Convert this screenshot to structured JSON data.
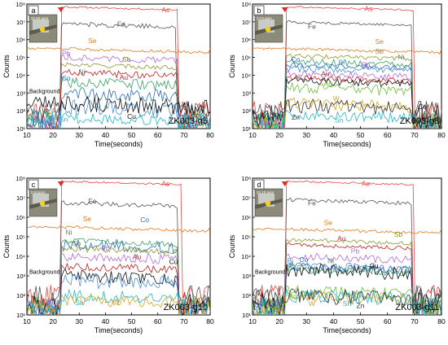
{
  "chart_data": [
    {
      "type": "line",
      "panel_label": "a",
      "sample": "ZK003-g5",
      "inset_value": "42.60 ppm",
      "xlabel": "Time(seconds)",
      "ylabel": "Counts",
      "xlim": [
        10,
        80
      ],
      "xticks": [
        10,
        20,
        30,
        40,
        50,
        60,
        70,
        80
      ],
      "ylim_exp": [
        1,
        8
      ],
      "yticks_exp": [
        1,
        2,
        3,
        4,
        5,
        6,
        7,
        8
      ],
      "ytick_labels": [
        "10¹",
        "10²",
        "10³",
        "10⁴",
        "10⁵",
        "10⁶",
        "10⁷",
        "10⁸"
      ],
      "signal_window": [
        23,
        70
      ],
      "background_label": "Background",
      "series": [
        {
          "name": "As",
          "color": "#e8483f",
          "bg": 2.0,
          "level": 7.85,
          "noise": 0.05,
          "end": 68
        },
        {
          "name": "Fe",
          "color": "#555555",
          "bg": 2.0,
          "level": 6.9,
          "noise": 0.15,
          "end": 67
        },
        {
          "name": "Se",
          "color": "#e07a1f",
          "bg": 5.5,
          "level": 5.5,
          "noise": 0.08,
          "end": 80
        },
        {
          "name": "Pb",
          "color": "#b36ad9",
          "bg": 1.4,
          "level": 5.0,
          "noise": 0.18,
          "end": 68
        },
        {
          "name": "Sb",
          "color": "#8a9a2a",
          "bg": 1.5,
          "level": 4.6,
          "noise": 0.12,
          "end": 68
        },
        {
          "name": "Ni",
          "color": "#3aa06a",
          "bg": 1.6,
          "level": 3.6,
          "noise": 0.3,
          "end": 68
        },
        {
          "name": "Au",
          "color": "#c41e1e",
          "bg": 1.3,
          "level": 4.15,
          "noise": 0.2,
          "end": 68
        },
        {
          "name": "Co",
          "color": "#2b6fb6",
          "bg": 1.3,
          "level": 3.0,
          "noise": 0.35,
          "end": 68
        },
        {
          "name": "V",
          "color": "#4a8fd4",
          "bg": 1.6,
          "level": 2.2,
          "noise": 0.45,
          "end": 68
        },
        {
          "name": "Cu",
          "color": "#111111",
          "bg": 2.4,
          "level": 2.4,
          "noise": 0.45,
          "end": 80
        },
        {
          "name": "Sn",
          "color": "#22b8c8",
          "bg": 1.3,
          "level": 1.6,
          "noise": 0.3,
          "end": 68
        }
      ],
      "labels": [
        {
          "text": "As",
          "x": 63,
          "y": 7.55
        },
        {
          "text": "Fe",
          "x": 46,
          "y": 6.75
        },
        {
          "text": "Se",
          "x": 35,
          "y": 5.8
        },
        {
          "text": "Pb",
          "x": 25,
          "y": 5.1
        },
        {
          "text": "Sb",
          "x": 48,
          "y": 4.75
        },
        {
          "text": "Ni",
          "x": 31,
          "y": 4.05
        },
        {
          "text": "Au",
          "x": 47,
          "y": 3.75
        },
        {
          "text": "Co",
          "x": 25,
          "y": 3.7
        },
        {
          "text": "Cu",
          "x": 50,
          "y": 1.55
        },
        {
          "text": "V",
          "x": 14,
          "y": 1.4
        },
        {
          "text": "Sn",
          "x": 24,
          "y": 1.4
        }
      ]
    },
    {
      "type": "line",
      "panel_label": "b",
      "sample": "ZK003-g8",
      "inset_value": "3.73 ppm",
      "xlabel": "Time(seconds)",
      "ylabel": "Counts",
      "xlim": [
        10,
        80
      ],
      "xticks": [
        10,
        20,
        30,
        40,
        50,
        60,
        70,
        80
      ],
      "ylim_exp": [
        1,
        8
      ],
      "yticks_exp": [
        1,
        2,
        3,
        4,
        5,
        6,
        7,
        8
      ],
      "ytick_labels": [
        "10¹",
        "10²",
        "10³",
        "10⁴",
        "10⁵",
        "10⁶",
        "10⁷",
        "10⁸"
      ],
      "signal_window": [
        22,
        70
      ],
      "background_label": "",
      "series": [
        {
          "name": "As",
          "color": "#e8483f",
          "bg": 2.0,
          "level": 7.85,
          "noise": 0.05,
          "end": 70
        },
        {
          "name": "Fe",
          "color": "#555555",
          "bg": 2.0,
          "level": 7.0,
          "noise": 0.08,
          "end": 69
        },
        {
          "name": "Se",
          "color": "#e07a1f",
          "bg": 5.5,
          "level": 5.5,
          "noise": 0.08,
          "end": 80
        },
        {
          "name": "Sb",
          "color": "#8a9a2a",
          "bg": 1.3,
          "level": 5.1,
          "noise": 0.12,
          "end": 69
        },
        {
          "name": "Ni",
          "color": "#3aa06a",
          "bg": 1.5,
          "level": 4.8,
          "noise": 0.2,
          "end": 69
        },
        {
          "name": "Co",
          "color": "#2b6fb6",
          "bg": 1.3,
          "level": 4.6,
          "noise": 0.15,
          "end": 69
        },
        {
          "name": "Bi",
          "color": "#4a8fd4",
          "bg": 1.3,
          "level": 4.4,
          "noise": 0.2,
          "end": 69
        },
        {
          "name": "Pb",
          "color": "#b36ad9",
          "bg": 1.3,
          "level": 4.1,
          "noise": 0.2,
          "end": 69
        },
        {
          "name": "Au",
          "color": "#c41e1e",
          "bg": 1.3,
          "level": 3.85,
          "noise": 0.15,
          "end": 69
        },
        {
          "name": "Ag",
          "color": "#6fbf3f",
          "bg": 1.3,
          "level": 3.3,
          "noise": 0.3,
          "end": 69
        },
        {
          "name": "W",
          "color": "#d8a51e",
          "bg": 1.2,
          "level": 2.4,
          "noise": 0.35,
          "end": 69
        },
        {
          "name": "Cu",
          "color": "#111111",
          "bg": 1.5,
          "level": 3.7,
          "noise": 0.2,
          "end": 69
        },
        {
          "name": "Zn",
          "color": "#333333",
          "bg": 1.8,
          "level": 2.3,
          "noise": 0.4,
          "end": 69
        },
        {
          "name": "Sn",
          "color": "#22b8c8",
          "bg": 1.3,
          "level": 1.8,
          "noise": 0.3,
          "end": 69
        }
      ],
      "labels": [
        {
          "text": "As",
          "x": 53,
          "y": 7.6
        },
        {
          "text": "Fe",
          "x": 32,
          "y": 6.6
        },
        {
          "text": "Se",
          "x": 57,
          "y": 5.75
        },
        {
          "text": "Sb",
          "x": 57,
          "y": 5.2
        },
        {
          "text": "Ni",
          "x": 65,
          "y": 4.9
        },
        {
          "text": "Co",
          "x": 26,
          "y": 4.75
        },
        {
          "text": "Bi",
          "x": 43,
          "y": 4.6
        },
        {
          "text": "Pb",
          "x": 52,
          "y": 4.45
        },
        {
          "text": "Au",
          "x": 37,
          "y": 3.95
        },
        {
          "text": "Ag",
          "x": 38,
          "y": 3.4
        },
        {
          "text": "W",
          "x": 41,
          "y": 2.55
        },
        {
          "text": "Cu",
          "x": 73,
          "y": 2.1
        },
        {
          "text": "Zn",
          "x": 26,
          "y": 1.5
        },
        {
          "text": "Sn",
          "x": 42,
          "y": 1.35
        }
      ]
    },
    {
      "type": "line",
      "panel_label": "c",
      "sample": "ZK003-g10",
      "inset_value": "0.61ppm",
      "xlabel": "Time(seconds)",
      "ylabel": "Counts",
      "xlim": [
        10,
        80
      ],
      "xticks": [
        10,
        20,
        30,
        40,
        50,
        60,
        70,
        80
      ],
      "ylim_exp": [
        1,
        8
      ],
      "yticks_exp": [
        1,
        2,
        3,
        4,
        5,
        6,
        7,
        8
      ],
      "ytick_labels": [
        "10¹",
        "10²",
        "10³",
        "10⁴",
        "10⁵",
        "10⁶",
        "10⁷",
        "10⁸"
      ],
      "signal_window": [
        23,
        68
      ],
      "background_label": "Background",
      "series": [
        {
          "name": "As",
          "color": "#e8483f",
          "bg": 2.0,
          "level": 7.85,
          "noise": 0.05,
          "end": 69
        },
        {
          "name": "Fe",
          "color": "#555555",
          "bg": 2.0,
          "level": 6.75,
          "noise": 0.12,
          "end": 68
        },
        {
          "name": "Se",
          "color": "#e07a1f",
          "bg": 5.5,
          "level": 5.5,
          "noise": 0.08,
          "end": 80
        },
        {
          "name": "Co",
          "color": "#2b6fb6",
          "bg": 1.3,
          "level": 4.6,
          "noise": 0.3,
          "end": 68
        },
        {
          "name": "Ni",
          "color": "#3aa06a",
          "bg": 1.4,
          "level": 4.8,
          "noise": 0.15,
          "end": 68
        },
        {
          "name": "Sb",
          "color": "#8a9a2a",
          "bg": 1.4,
          "level": 4.4,
          "noise": 0.15,
          "end": 68
        },
        {
          "name": "Pb",
          "color": "#b36ad9",
          "bg": 1.3,
          "level": 4.0,
          "noise": 0.25,
          "end": 68
        },
        {
          "name": "Au",
          "color": "#c41e1e",
          "bg": 1.3,
          "level": 3.5,
          "noise": 0.2,
          "end": 68
        },
        {
          "name": "Cu",
          "color": "#111111",
          "bg": 1.5,
          "level": 3.0,
          "noise": 0.35,
          "end": 68
        },
        {
          "name": "Bi",
          "color": "#4a8fd4",
          "bg": 1.3,
          "level": 2.8,
          "noise": 0.4,
          "end": 68
        },
        {
          "name": "Sn",
          "color": "#22b8c8",
          "bg": 1.3,
          "level": 2.0,
          "noise": 0.3,
          "end": 68
        },
        {
          "name": "W",
          "color": "#d8a51e",
          "bg": 1.3,
          "level": 1.8,
          "noise": 0.3,
          "end": 68
        }
      ],
      "labels": [
        {
          "text": "As",
          "x": 63,
          "y": 7.6
        },
        {
          "text": "Fe",
          "x": 35,
          "y": 6.7
        },
        {
          "text": "Se",
          "x": 33,
          "y": 5.8
        },
        {
          "text": "Co",
          "x": 55,
          "y": 5.75
        },
        {
          "text": "Ni",
          "x": 26,
          "y": 5.1
        },
        {
          "text": "Sb",
          "x": 29,
          "y": 4.55
        },
        {
          "text": "Pb",
          "x": 40,
          "y": 4.3
        },
        {
          "text": "Au",
          "x": 52,
          "y": 3.85
        },
        {
          "text": "Cu",
          "x": 66,
          "y": 3.6
        },
        {
          "text": "Sn",
          "x": 30,
          "y": 1.5
        },
        {
          "text": "W",
          "x": 44,
          "y": 1.5
        }
      ]
    },
    {
      "type": "line",
      "panel_label": "d",
      "sample": "ZK003-g11",
      "inset_value": "10.18 ppm",
      "xlabel": "Time(seconds)",
      "ylabel": "Counts",
      "xlim": [
        10,
        80
      ],
      "xticks": [
        10,
        20,
        30,
        40,
        50,
        60,
        70,
        80
      ],
      "ylim_exp": [
        1,
        8
      ],
      "yticks_exp": [
        1,
        2,
        3,
        4,
        5,
        6,
        7,
        8
      ],
      "ytick_labels": [
        "10¹",
        "10²",
        "10³",
        "10⁴",
        "10⁵",
        "10⁶",
        "10⁷",
        "10⁸"
      ],
      "signal_window": [
        22,
        70
      ],
      "background_label": "Background",
      "series": [
        {
          "name": "As",
          "color": "#e8483f",
          "bg": 2.0,
          "level": 7.85,
          "noise": 0.05,
          "end": 70
        },
        {
          "name": "Fe",
          "color": "#555555",
          "bg": 2.0,
          "level": 6.9,
          "noise": 0.1,
          "end": 69
        },
        {
          "name": "Se",
          "color": "#e07a1f",
          "bg": 5.4,
          "level": 5.4,
          "noise": 0.08,
          "end": 80
        },
        {
          "name": "Sb",
          "color": "#8a9a2a",
          "bg": 1.3,
          "level": 4.85,
          "noise": 0.1,
          "end": 69
        },
        {
          "name": "Au",
          "color": "#c41e1e",
          "bg": 1.3,
          "level": 4.6,
          "noise": 0.1,
          "end": 69
        },
        {
          "name": "Pb",
          "color": "#b36ad9",
          "bg": 1.3,
          "level": 4.0,
          "noise": 0.2,
          "end": 69
        },
        {
          "name": "Bi",
          "color": "#4a8fd4",
          "bg": 1.3,
          "level": 3.5,
          "noise": 0.25,
          "end": 69
        },
        {
          "name": "Co",
          "color": "#2b6fb6",
          "bg": 1.3,
          "level": 3.5,
          "noise": 0.2,
          "end": 69
        },
        {
          "name": "Ni",
          "color": "#3aa06a",
          "bg": 1.3,
          "level": 3.4,
          "noise": 0.25,
          "end": 69
        },
        {
          "name": "Cu",
          "color": "#111111",
          "bg": 1.6,
          "level": 3.3,
          "noise": 0.35,
          "end": 69
        },
        {
          "name": "Ag",
          "color": "#6fbf3f",
          "bg": 1.4,
          "level": 2.2,
          "noise": 0.35,
          "end": 69
        },
        {
          "name": "W",
          "color": "#d8a51e",
          "bg": 1.4,
          "level": 2.0,
          "noise": 0.3,
          "end": 69
        },
        {
          "name": "Sn",
          "color": "#22b8c8",
          "bg": 1.4,
          "level": 2.0,
          "noise": 0.35,
          "end": 69
        },
        {
          "name": "Zn",
          "color": "#333333",
          "bg": 1.8,
          "level": 2.0,
          "noise": 0.4,
          "end": 69
        }
      ],
      "labels": [
        {
          "text": "As",
          "x": 52,
          "y": 7.6
        },
        {
          "text": "Fe",
          "x": 32,
          "y": 6.6
        },
        {
          "text": "Se",
          "x": 38,
          "y": 5.6
        },
        {
          "text": "Sb",
          "x": 64,
          "y": 5.0
        },
        {
          "text": "Au",
          "x": 43,
          "y": 4.8
        },
        {
          "text": "Pb",
          "x": 48,
          "y": 4.15
        },
        {
          "text": "Bi",
          "x": 24,
          "y": 3.65
        },
        {
          "text": "Co",
          "x": 29,
          "y": 3.7
        },
        {
          "text": "Ni",
          "x": 39,
          "y": 3.65
        },
        {
          "text": "Cu",
          "x": 55,
          "y": 3.4
        },
        {
          "text": "Ag",
          "x": 25,
          "y": 1.85
        },
        {
          "text": "W",
          "x": 32,
          "y": 1.45
        },
        {
          "text": "Sn",
          "x": 45,
          "y": 1.45
        },
        {
          "text": "Zn",
          "x": 50,
          "y": 1.35
        }
      ]
    }
  ]
}
